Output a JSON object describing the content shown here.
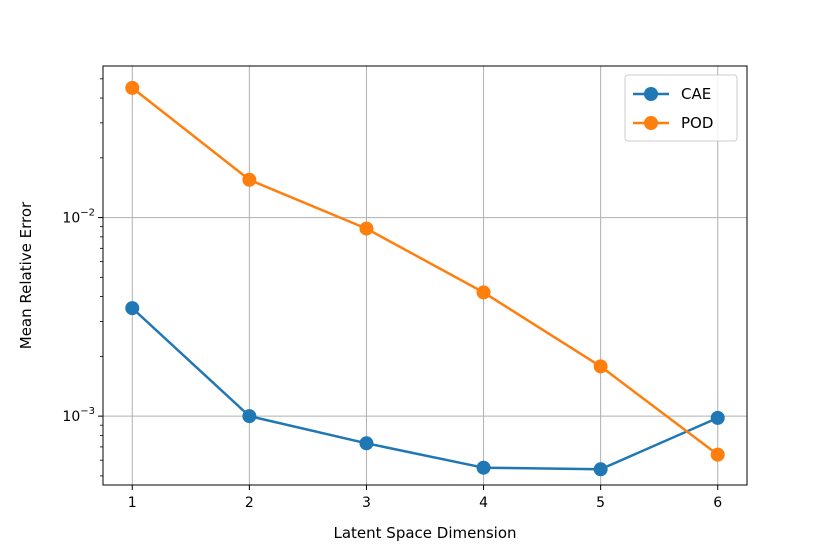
{
  "chart_data": {
    "type": "line",
    "title": "",
    "xlabel": "Latent Space Dimension",
    "ylabel": "Mean Relative Error",
    "x": [
      1,
      2,
      3,
      4,
      5,
      6
    ],
    "xlim": [
      0.75,
      6.25
    ],
    "ylim": [
      0.00045,
      0.058
    ],
    "yscale": "log",
    "x_ticks": [
      "1",
      "2",
      "3",
      "4",
      "5",
      "6"
    ],
    "y_ticks": [
      {
        "value": 0.001,
        "base": "10",
        "exp": "−3"
      },
      {
        "value": 0.01,
        "base": "10",
        "exp": "−2"
      }
    ],
    "grid": true,
    "legend_position": "top-right",
    "series": [
      {
        "name": "CAE",
        "color": "#1f77b4",
        "values": [
          0.0035,
          0.001,
          0.00073,
          0.00055,
          0.00054,
          0.00098
        ]
      },
      {
        "name": "POD",
        "color": "#ff7f0e",
        "values": [
          0.045,
          0.0155,
          0.0088,
          0.0042,
          0.00178,
          0.00064
        ]
      }
    ]
  }
}
